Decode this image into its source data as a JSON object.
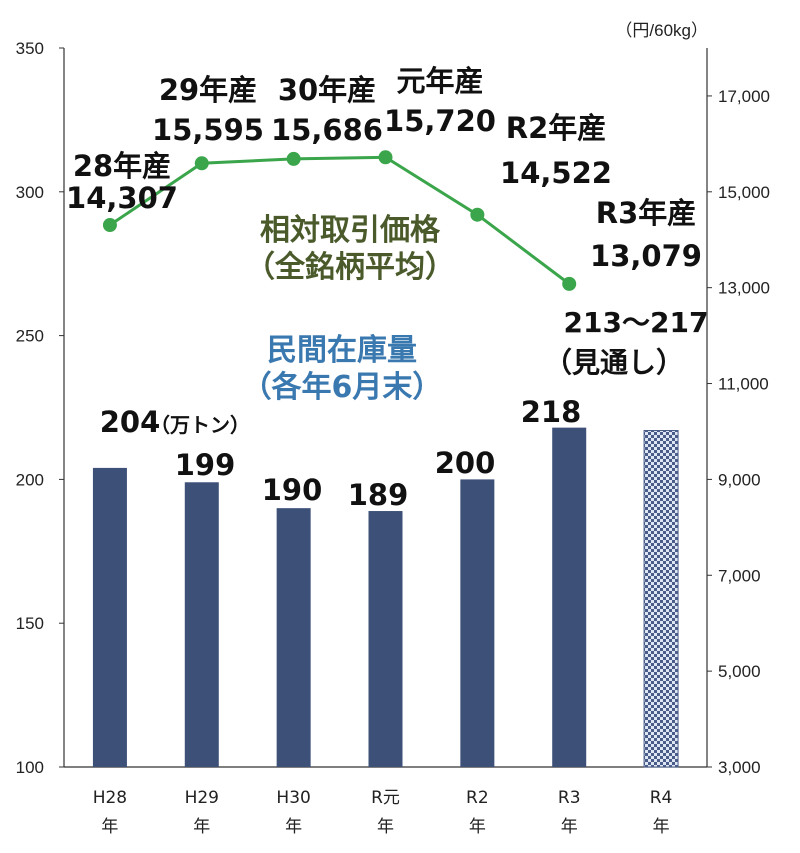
{
  "chart_data": {
    "type": "bar",
    "categories": [
      "H28\n年",
      "H29\n年",
      "H30\n年",
      "R元\n年",
      "R2\n年",
      "R3\n年",
      "R4\n年"
    ],
    "ylim_left": [
      100,
      350
    ],
    "yticks_left": [
      100,
      150,
      200,
      250,
      300,
      350
    ],
    "ylim_right": [
      3000,
      18000
    ],
    "yticks_right": [
      "3,000",
      "5,000",
      "7,000",
      "9,000",
      "11,000",
      "13,000",
      "15,000",
      "17,000"
    ],
    "right_unit": "（円/60kg）",
    "inventory": {
      "title_line1": "民間在庫量",
      "title_line2": "（各年6月末）",
      "color": "#3d5078",
      "values": [
        204,
        199,
        190,
        189,
        200,
        218,
        217
      ],
      "labels": [
        "204",
        "199",
        "190",
        "189",
        "200",
        "218",
        ""
      ],
      "unit_note": "（万トン）",
      "forecast_label1": "213～217",
      "forecast_label2": "（見通し）"
    },
    "price": {
      "title_line1": "相対取引価格",
      "title_line2": "（全銘柄平均）",
      "color": "#3aa54a",
      "title_color": "#4a5a2a",
      "values": [
        14307,
        15595,
        15686,
        15720,
        14522,
        13079
      ],
      "year_labels": [
        "28年産",
        "29年産",
        "30年産",
        "元年産",
        "R2年産",
        "R3年産"
      ],
      "value_labels": [
        "14,307",
        "15,595",
        "15,686",
        "15,720",
        "14,522",
        "13,079"
      ]
    }
  }
}
